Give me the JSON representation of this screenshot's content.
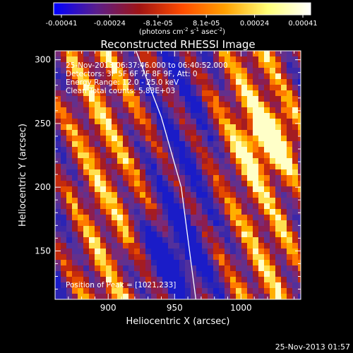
{
  "colorbar": {
    "tick_labels": [
      "-0.00041",
      "-0.00024",
      "-8.1e-05",
      "8.1e-05",
      "0.00024",
      "0.00041"
    ],
    "unit_label_main": "(photons cm",
    "unit_label_sup1": "-2",
    "unit_label_mid": " s",
    "unit_label_sup2": "-1",
    "unit_label_mid2": " asec",
    "unit_label_sup3": "-2",
    "unit_label_end": ")",
    "colors": [
      "#0000ff",
      "#5a1e8c",
      "#a01414",
      "#ff4b00",
      "#ffa000",
      "#ffff78",
      "#ffffff"
    ]
  },
  "chart_data": {
    "type": "heatmap",
    "title": "Reconstructed RHESSI Image",
    "xlabel": "Heliocentric X (arcsec)",
    "ylabel": "Heliocentric Y (arcsec)",
    "xlim": [
      860,
      1045
    ],
    "ylim": [
      112,
      307
    ],
    "x_ticks": [
      900,
      950,
      1000
    ],
    "y_ticks": [
      150,
      200,
      250,
      300
    ],
    "annotations": [
      "25-Nov-2013 06:37:46.000 to 06:40:52.000",
      "Detectors: 3F 5F 6F 7F 8F 9F, Att: 0",
      "Energy Range: 12.0 - 25.0 keV",
      "Clean     Total counts: 5.83E+03"
    ],
    "peak_label": "Position of Peak = [1021,233]",
    "limb_line": [
      [
        921,
        307
      ],
      [
        940,
        255
      ],
      [
        955,
        200
      ],
      [
        966,
        112
      ]
    ]
  },
  "footer": {
    "timestamp": "25-Nov-2013 01:57"
  }
}
